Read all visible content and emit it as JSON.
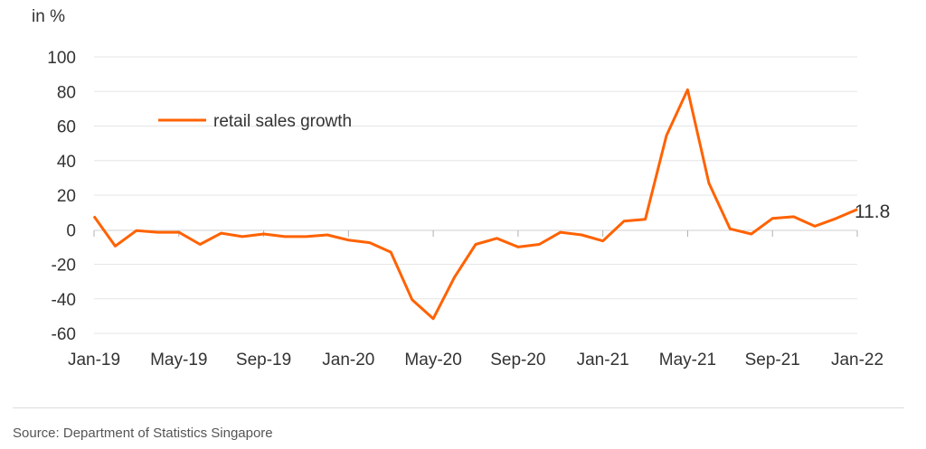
{
  "chart_data": {
    "type": "line",
    "ylabel": "in %",
    "ylim": [
      -60,
      100
    ],
    "y_ticks": [
      100,
      80,
      60,
      40,
      20,
      0,
      -20,
      -40,
      -60
    ],
    "x_tick_labels": [
      "Jan-19",
      "May-19",
      "Sep-19",
      "Jan-20",
      "May-20",
      "Sep-20",
      "Jan-21",
      "May-21",
      "Sep-21",
      "Jan-22"
    ],
    "grid": true,
    "legend_position": "top-left",
    "series": [
      {
        "name": "retail sales growth",
        "color": "#ff6200",
        "x": [
          "Jan-19",
          "Feb-19",
          "Mar-19",
          "Apr-19",
          "May-19",
          "Jun-19",
          "Jul-19",
          "Aug-19",
          "Sep-19",
          "Oct-19",
          "Nov-19",
          "Dec-19",
          "Jan-20",
          "Feb-20",
          "Mar-20",
          "Apr-20",
          "May-20",
          "Jun-20",
          "Jul-20",
          "Aug-20",
          "Sep-20",
          "Oct-20",
          "Nov-20",
          "Dec-20",
          "Jan-21",
          "Feb-21",
          "Mar-21",
          "Apr-21",
          "May-21",
          "Jun-21",
          "Jul-21",
          "Aug-21",
          "Sep-21",
          "Oct-21",
          "Nov-21",
          "Dec-21",
          "Jan-22"
        ],
        "values": [
          7.7,
          -9.5,
          -0.5,
          -1.5,
          -1.5,
          -8.5,
          -2.0,
          -4.0,
          -2.5,
          -4.0,
          -4.0,
          -3.0,
          -6.0,
          -7.5,
          -13.0,
          -40.5,
          -51.5,
          -27.5,
          -8.5,
          -5.0,
          -10.0,
          -8.5,
          -1.5,
          -3.0,
          -6.5,
          5.0,
          6.0,
          54.5,
          81.0,
          27.0,
          0.5,
          -2.5,
          6.5,
          7.5,
          2.0,
          6.5,
          11.8
        ]
      }
    ],
    "end_label": "11.8"
  },
  "source": "Source: Department of Statistics Singapore"
}
